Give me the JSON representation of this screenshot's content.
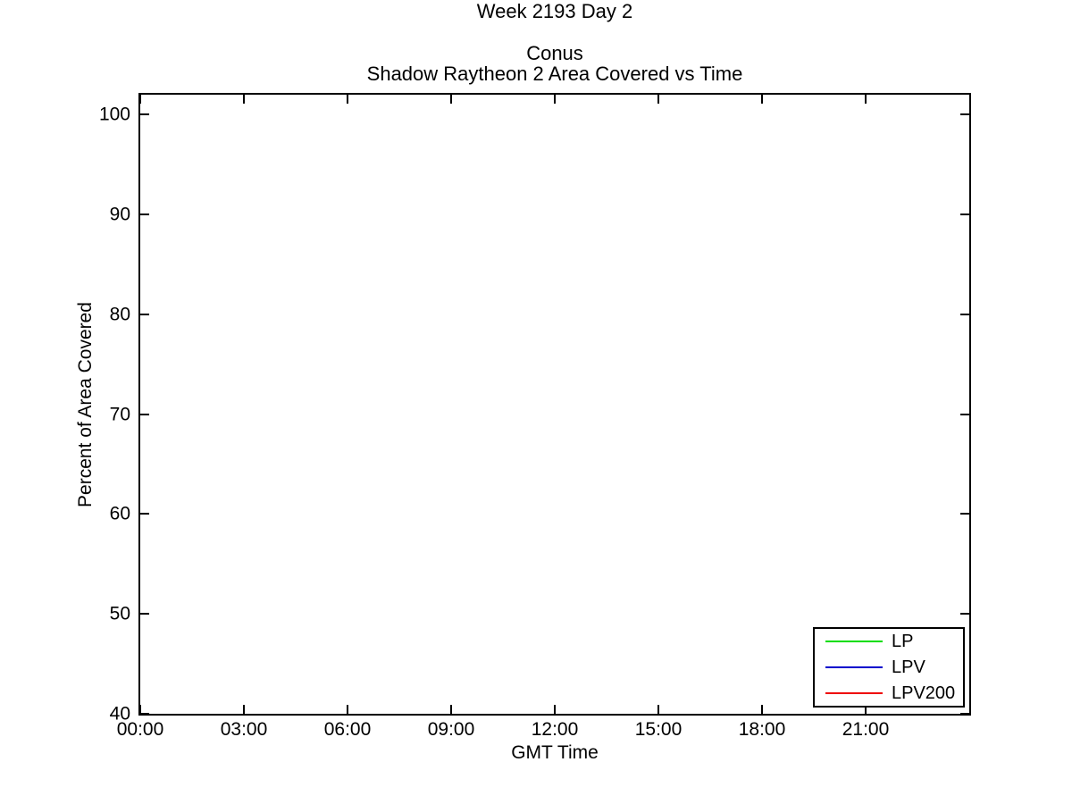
{
  "figure": {
    "background_color": "#ffffff",
    "axis_color": "#000000",
    "text_color": "#000000"
  },
  "chart_data": {
    "type": "line",
    "suptitle": "Week 2193 Day 2",
    "title_lines": [
      "Conus",
      "Shadow Raytheon 2 Area Covered vs Time"
    ],
    "xlabel": "GMT Time",
    "ylabel": "Percent of Area Covered",
    "xlim_hours": [
      0,
      24
    ],
    "ylim": [
      40,
      102
    ],
    "grid": false,
    "box": true,
    "tick_direction": "in",
    "x_ticks": [
      {
        "hour": 0,
        "label": "00:00"
      },
      {
        "hour": 3,
        "label": "03:00"
      },
      {
        "hour": 6,
        "label": "06:00"
      },
      {
        "hour": 9,
        "label": "09:00"
      },
      {
        "hour": 12,
        "label": "12:00"
      },
      {
        "hour": 15,
        "label": "15:00"
      },
      {
        "hour": 18,
        "label": "18:00"
      },
      {
        "hour": 21,
        "label": "21:00"
      }
    ],
    "y_ticks": [
      {
        "value": 40,
        "label": "40"
      },
      {
        "value": 50,
        "label": "50"
      },
      {
        "value": 60,
        "label": "60"
      },
      {
        "value": 70,
        "label": "70"
      },
      {
        "value": 80,
        "label": "80"
      },
      {
        "value": 90,
        "label": "90"
      },
      {
        "value": 100,
        "label": "100"
      }
    ],
    "series": [
      {
        "name": "LP",
        "color": "#00dd00",
        "values": []
      },
      {
        "name": "LPV",
        "color": "#0000cc",
        "values": []
      },
      {
        "name": "LPV200",
        "color": "#ee0000",
        "values": []
      }
    ],
    "legend": {
      "position": "bottom-right",
      "entries": [
        "LP",
        "LPV",
        "LPV200"
      ]
    }
  }
}
